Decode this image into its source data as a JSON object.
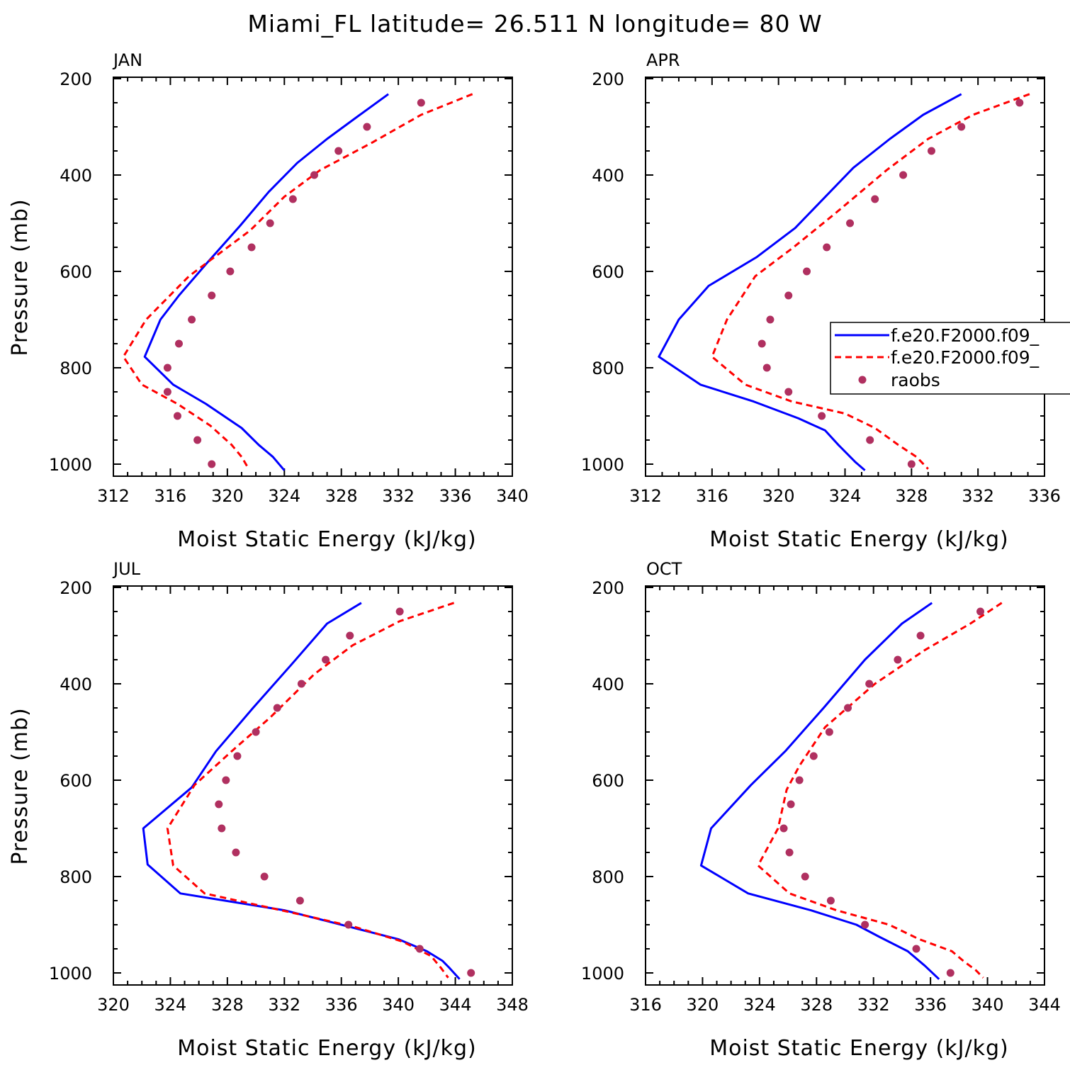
{
  "title": "Miami_FL  latitude= 26.511 N longitude= 80 W",
  "legend": {
    "entries": [
      {
        "label": "f.e20.F2000.f09_",
        "color": "#0000ff",
        "style": "solid"
      },
      {
        "label": "f.e20.F2000.f09_",
        "color": "#ff0000",
        "style": "dashed"
      },
      {
        "label": "raobs",
        "color": "#b03060",
        "style": "dots"
      }
    ]
  },
  "chart_data": [
    {
      "type": "line",
      "title": "JAN",
      "xlabel": "Moist Static Energy (kJ/kg)",
      "ylabel": "Pressure (mb)",
      "xlim": [
        312,
        340
      ],
      "xticks": [
        "312",
        "316",
        "320",
        "324",
        "328",
        "332",
        "336",
        "340"
      ],
      "ylim": [
        200,
        1025
      ],
      "yticks": [
        "200",
        "400",
        "600",
        "800",
        "1000"
      ],
      "y_inverted": true,
      "series": [
        {
          "color": "#0000ff",
          "style": "solid",
          "points": [
            [
              331.3,
              232
            ],
            [
              329.3,
              275
            ],
            [
              327.0,
              325
            ],
            [
              324.9,
              375
            ],
            [
              322.9,
              435
            ],
            [
              320.9,
              505
            ],
            [
              318.5,
              585
            ],
            [
              316.6,
              650
            ],
            [
              315.3,
              700
            ],
            [
              314.2,
              777
            ],
            [
              316.2,
              835
            ],
            [
              318.5,
              875
            ],
            [
              321.0,
              925
            ],
            [
              322.2,
              960
            ],
            [
              323.2,
              985
            ],
            [
              324.0,
              1013
            ]
          ]
        },
        {
          "color": "#ff0000",
          "style": "dashed",
          "points": [
            [
              337.2,
              232
            ],
            [
              333.6,
              275
            ],
            [
              330.2,
              332
            ],
            [
              326.5,
              390
            ],
            [
              324.0,
              445
            ],
            [
              321.6,
              515
            ],
            [
              317.3,
              610
            ],
            [
              314.3,
              700
            ],
            [
              312.7,
              777
            ],
            [
              314.0,
              835
            ],
            [
              316.5,
              875
            ],
            [
              318.8,
              920
            ],
            [
              320.3,
              960
            ],
            [
              321.0,
              985
            ],
            [
              321.5,
              1010
            ]
          ]
        },
        {
          "color": "#b03060",
          "style": "dots",
          "points": [
            [
              333.6,
              250
            ],
            [
              329.8,
              300
            ],
            [
              327.8,
              350
            ],
            [
              326.1,
              400
            ],
            [
              324.6,
              450
            ],
            [
              323.0,
              500
            ],
            [
              321.7,
              550
            ],
            [
              320.2,
              600
            ],
            [
              318.9,
              650
            ],
            [
              317.5,
              700
            ],
            [
              316.6,
              750
            ],
            [
              315.8,
              800
            ],
            [
              315.8,
              850
            ],
            [
              316.5,
              900
            ],
            [
              317.9,
              950
            ],
            [
              318.9,
              1000
            ]
          ]
        }
      ]
    },
    {
      "type": "line",
      "title": "APR",
      "xlabel": "Moist Static Energy (kJ/kg)",
      "ylabel": "",
      "xlim": [
        312,
        336
      ],
      "xticks": [
        "312",
        "316",
        "320",
        "324",
        "328",
        "332",
        "336"
      ],
      "ylim": [
        200,
        1025
      ],
      "yticks": [
        "200",
        "400",
        "600",
        "800",
        "1000"
      ],
      "y_inverted": true,
      "series": [
        {
          "color": "#0000ff",
          "style": "solid",
          "points": [
            [
              331.0,
              232
            ],
            [
              328.7,
              275
            ],
            [
              326.7,
              325
            ],
            [
              324.5,
              385
            ],
            [
              321.0,
              510
            ],
            [
              318.7,
              570
            ],
            [
              315.8,
              630
            ],
            [
              314.0,
              700
            ],
            [
              312.8,
              777
            ],
            [
              315.3,
              835
            ],
            [
              318.5,
              870
            ],
            [
              321.2,
              905
            ],
            [
              322.8,
              930
            ],
            [
              323.6,
              960
            ],
            [
              324.6,
              995
            ],
            [
              325.2,
              1013
            ]
          ]
        },
        {
          "color": "#ff0000",
          "style": "dashed",
          "points": [
            [
              335.1,
              232
            ],
            [
              331.7,
              275
            ],
            [
              329.0,
              325
            ],
            [
              326.5,
              390
            ],
            [
              323.4,
              480
            ],
            [
              320.9,
              550
            ],
            [
              318.6,
              610
            ],
            [
              316.9,
              700
            ],
            [
              316.0,
              777
            ],
            [
              318.0,
              835
            ],
            [
              320.8,
              870
            ],
            [
              324.0,
              895
            ],
            [
              325.8,
              925
            ],
            [
              327.2,
              960
            ],
            [
              328.3,
              985
            ],
            [
              329.0,
              1010
            ]
          ]
        },
        {
          "color": "#b03060",
          "style": "dots",
          "points": [
            [
              334.5,
              250
            ],
            [
              331.0,
              300
            ],
            [
              329.2,
              350
            ],
            [
              327.5,
              400
            ],
            [
              325.8,
              450
            ],
            [
              324.3,
              500
            ],
            [
              322.9,
              550
            ],
            [
              321.7,
              600
            ],
            [
              320.6,
              650
            ],
            [
              319.5,
              700
            ],
            [
              319.0,
              750
            ],
            [
              319.3,
              800
            ],
            [
              320.6,
              850
            ],
            [
              322.6,
              900
            ],
            [
              325.5,
              950
            ],
            [
              328.0,
              1000
            ]
          ]
        }
      ]
    },
    {
      "type": "line",
      "title": "JUL",
      "xlabel": "Moist Static Energy (kJ/kg)",
      "ylabel": "Pressure (mb)",
      "xlim": [
        320,
        348
      ],
      "xticks": [
        "320",
        "324",
        "328",
        "332",
        "336",
        "340",
        "344",
        "348"
      ],
      "ylim": [
        200,
        1025
      ],
      "yticks": [
        "200",
        "400",
        "600",
        "800",
        "1000"
      ],
      "y_inverted": true,
      "series": [
        {
          "color": "#0000ff",
          "style": "solid",
          "points": [
            [
              337.4,
              232
            ],
            [
              335.0,
              275
            ],
            [
              332.5,
              360
            ],
            [
              329.8,
              450
            ],
            [
              327.2,
              540
            ],
            [
              325.5,
              615
            ],
            [
              322.1,
              700
            ],
            [
              322.4,
              775
            ],
            [
              324.7,
              835
            ],
            [
              332.0,
              870
            ],
            [
              340.0,
              930
            ],
            [
              342.0,
              955
            ],
            [
              343.1,
              975
            ],
            [
              343.6,
              990
            ],
            [
              344.3,
              1013
            ]
          ]
        },
        {
          "color": "#ff0000",
          "style": "dashed",
          "points": [
            [
              343.9,
              232
            ],
            [
              340.1,
              270
            ],
            [
              336.8,
              320
            ],
            [
              334.1,
              380
            ],
            [
              331.0,
              470
            ],
            [
              328.3,
              540
            ],
            [
              325.7,
              610
            ],
            [
              323.8,
              700
            ],
            [
              324.2,
              777
            ],
            [
              326.4,
              835
            ],
            [
              333.0,
              878
            ],
            [
              337.0,
              905
            ],
            [
              340.3,
              935
            ],
            [
              342.3,
              965
            ],
            [
              343.0,
              990
            ],
            [
              343.5,
              1010
            ]
          ]
        },
        {
          "color": "#b03060",
          "style": "dots",
          "points": [
            [
              340.1,
              250
            ],
            [
              336.6,
              300
            ],
            [
              334.9,
              350
            ],
            [
              333.2,
              400
            ],
            [
              331.5,
              450
            ],
            [
              330.0,
              500
            ],
            [
              328.7,
              550
            ],
            [
              327.9,
              600
            ],
            [
              327.4,
              650
            ],
            [
              327.6,
              700
            ],
            [
              328.6,
              750
            ],
            [
              330.6,
              800
            ],
            [
              333.1,
              850
            ],
            [
              336.5,
              900
            ],
            [
              341.5,
              950
            ],
            [
              345.1,
              1000
            ]
          ]
        }
      ]
    },
    {
      "type": "line",
      "title": "OCT",
      "xlabel": "Moist Static Energy (kJ/kg)",
      "ylabel": "",
      "xlim": [
        316,
        344
      ],
      "xticks": [
        "316",
        "320",
        "324",
        "328",
        "332",
        "336",
        "340",
        "344"
      ],
      "ylim": [
        200,
        1025
      ],
      "yticks": [
        "200",
        "400",
        "600",
        "800",
        "1000"
      ],
      "y_inverted": true,
      "series": [
        {
          "color": "#0000ff",
          "style": "solid",
          "points": [
            [
              336.1,
              232
            ],
            [
              334.0,
              275
            ],
            [
              331.4,
              350
            ],
            [
              328.5,
              450
            ],
            [
              325.8,
              540
            ],
            [
              323.4,
              610
            ],
            [
              320.6,
              700
            ],
            [
              319.9,
              777
            ],
            [
              323.2,
              835
            ],
            [
              327.6,
              870
            ],
            [
              330.8,
              900
            ],
            [
              332.4,
              925
            ],
            [
              334.4,
              955
            ],
            [
              335.6,
              985
            ],
            [
              336.6,
              1013
            ]
          ]
        },
        {
          "color": "#ff0000",
          "style": "dashed",
          "points": [
            [
              341.0,
              232
            ],
            [
              338.8,
              275
            ],
            [
              335.6,
              330
            ],
            [
              332.1,
              400
            ],
            [
              328.6,
              490
            ],
            [
              326.8,
              570
            ],
            [
              325.9,
              620
            ],
            [
              325.3,
              700
            ],
            [
              323.9,
              777
            ],
            [
              326.1,
              835
            ],
            [
              329.4,
              870
            ],
            [
              333.1,
              900
            ],
            [
              335.2,
              930
            ],
            [
              337.5,
              955
            ],
            [
              338.3,
              975
            ],
            [
              339.2,
              995
            ],
            [
              339.7,
              1010
            ]
          ]
        },
        {
          "color": "#b03060",
          "style": "dots",
          "points": [
            [
              339.5,
              250
            ],
            [
              335.3,
              300
            ],
            [
              333.7,
              350
            ],
            [
              331.7,
              400
            ],
            [
              330.2,
              450
            ],
            [
              328.9,
              500
            ],
            [
              327.8,
              550
            ],
            [
              326.8,
              600
            ],
            [
              326.2,
              650
            ],
            [
              325.7,
              700
            ],
            [
              326.1,
              750
            ],
            [
              327.2,
              800
            ],
            [
              329.0,
              850
            ],
            [
              331.4,
              900
            ],
            [
              335.0,
              950
            ],
            [
              337.4,
              1000
            ]
          ]
        }
      ]
    }
  ]
}
